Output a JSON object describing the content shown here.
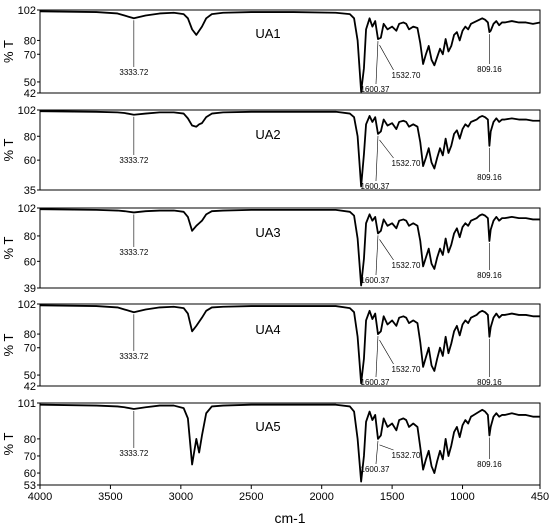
{
  "chart_data": {
    "type": "line",
    "xlabel": "cm-1",
    "xlim": [
      4000,
      450
    ],
    "xticks": [
      4000,
      3500,
      3000,
      2500,
      2000,
      1500,
      1000,
      450
    ],
    "ylabel": "% T",
    "grid": false,
    "panels": [
      {
        "title": "UA1",
        "ylim": [
          42,
          102
        ],
        "yticks": [
          102,
          80,
          70,
          50,
          42
        ],
        "annotations": [
          "3333.72",
          "1600.37",
          "1532.70",
          "809.16"
        ],
        "series": [
          {
            "x": [
              4000,
              3600,
              3450,
              3400,
              3333.72,
              3250,
              3150,
              3050,
              2980,
              2950,
              2920,
              2890,
              2870,
              2850,
              2820,
              2780,
              2700,
              2500,
              2200,
              1900,
              1800,
              1770,
              1745,
              1720,
              1700,
              1685,
              1660,
              1640,
              1620,
              1600.37,
              1580,
              1560,
              1532.7,
              1500,
              1470,
              1450,
              1420,
              1400,
              1380,
              1350,
              1320,
              1300,
              1280,
              1260,
              1240,
              1220,
              1200,
              1180,
              1160,
              1140,
              1120,
              1100,
              1080,
              1060,
              1040,
              1020,
              1000,
              980,
              960,
              940,
              920,
              900,
              880,
              860,
              840,
              820,
              809.16,
              800,
              780,
              760,
              740,
              720,
              700,
              650,
              600,
              550,
              500,
              450
            ],
            "y": [
              101,
              100.5,
              99.5,
              98,
              96,
              98,
              99.5,
              100,
              99,
              96,
              88,
              84,
              87,
              90,
              96,
              99,
              100,
              100.5,
              100.5,
              100,
              99,
              96,
              80,
              43,
              60,
              88,
              96,
              90,
              94,
              81,
              82,
              92,
              88,
              90,
              87,
              92,
              93,
              92,
              88,
              90,
              89,
              78,
              63,
              70,
              76,
              66,
              62,
              68,
              74,
              70,
              81,
              72,
              76,
              84,
              86,
              80,
              87,
              90,
              88,
              92,
              93,
              94,
              95,
              96,
              95,
              93,
              86,
              87,
              92,
              94,
              91,
              93,
              93,
              94,
              93,
              93,
              92,
              93
            ]
          }
        ]
      },
      {
        "title": "UA2",
        "ylim": [
          35,
          102
        ],
        "yticks": [
          102,
          80,
          60,
          35
        ],
        "annotations": [
          "3333.72",
          "1600.37",
          "1532.70",
          "809.16"
        ],
        "series": [
          {
            "x": [
              4000,
              3600,
              3450,
              3400,
              3333.72,
              3250,
              3150,
              3050,
              2980,
              2950,
              2920,
              2890,
              2870,
              2850,
              2820,
              2780,
              2700,
              2500,
              2200,
              1900,
              1800,
              1770,
              1745,
              1720,
              1700,
              1685,
              1660,
              1640,
              1620,
              1600.37,
              1580,
              1560,
              1532.7,
              1500,
              1470,
              1450,
              1420,
              1400,
              1380,
              1350,
              1320,
              1300,
              1280,
              1260,
              1240,
              1220,
              1200,
              1180,
              1160,
              1140,
              1120,
              1100,
              1080,
              1060,
              1040,
              1020,
              1000,
              980,
              960,
              940,
              920,
              900,
              880,
              860,
              840,
              820,
              809.16,
              800,
              780,
              760,
              740,
              720,
              700,
              650,
              600,
              550,
              500,
              450
            ],
            "y": [
              101,
              100.5,
              100,
              99.5,
              98,
              99,
              100,
              100,
              99,
              95,
              89,
              88,
              90,
              91,
              96,
              99,
              100,
              100.5,
              100.5,
              100.5,
              99,
              96,
              80,
              38,
              65,
              90,
              97,
              92,
              96,
              82,
              84,
              94,
              89,
              91,
              86,
              92,
              93,
              92,
              88,
              90,
              88,
              75,
              55,
              62,
              70,
              58,
              53,
              62,
              70,
              64,
              78,
              66,
              72,
              82,
              85,
              78,
              86,
              90,
              88,
              92,
              93,
              94,
              96,
              97,
              96,
              94,
              72,
              84,
              92,
              95,
              92,
              94,
              94,
              95,
              94,
              94,
              93,
              93
            ]
          }
        ]
      },
      {
        "title": "UA3",
        "ylim": [
          39,
          102
        ],
        "yticks": [
          102,
          80,
          60,
          39
        ],
        "annotations": [
          "3333.72",
          "1600.37",
          "1532.70",
          "809.16"
        ],
        "series": [
          {
            "x": [
              4000,
              3600,
              3450,
              3400,
              3333.72,
              3250,
              3150,
              3050,
              2980,
              2950,
              2920,
              2890,
              2870,
              2850,
              2820,
              2780,
              2700,
              2500,
              2200,
              1900,
              1800,
              1770,
              1745,
              1720,
              1700,
              1685,
              1660,
              1640,
              1620,
              1600.37,
              1580,
              1560,
              1532.7,
              1500,
              1470,
              1450,
              1420,
              1400,
              1380,
              1350,
              1320,
              1300,
              1280,
              1260,
              1240,
              1220,
              1200,
              1180,
              1160,
              1140,
              1120,
              1100,
              1080,
              1060,
              1040,
              1020,
              1000,
              980,
              960,
              940,
              920,
              900,
              880,
              860,
              840,
              820,
              809.16,
              800,
              780,
              760,
              740,
              720,
              700,
              650,
              600,
              550,
              500,
              450
            ],
            "y": [
              101,
              100.5,
              100,
              99.5,
              98.5,
              99.5,
              100,
              100,
              99,
              95,
              84,
              88,
              90,
              92,
              97,
              99.5,
              100,
              100.5,
              100.5,
              100.5,
              99,
              96,
              78,
              41,
              62,
              90,
              97,
              92,
              95,
              82,
              84,
              93,
              88,
              90,
              86,
              92,
              93,
              92,
              88,
              90,
              88,
              76,
              56,
              63,
              70,
              58,
              54,
              63,
              70,
              65,
              78,
              67,
              73,
              82,
              86,
              79,
              87,
              90,
              88,
              92,
              93,
              94,
              96,
              97,
              96,
              94,
              76,
              85,
              92,
              95,
              92,
              94,
              94,
              95,
              94,
              94,
              93,
              93
            ]
          }
        ]
      },
      {
        "title": "UA4",
        "ylim": [
          42,
          102
        ],
        "yticks": [
          102,
          80,
          70,
          50,
          42
        ],
        "annotations": [
          "3333.72",
          "1600.37",
          "1532.70",
          "809.16"
        ],
        "series": [
          {
            "x": [
              4000,
              3600,
              3450,
              3400,
              3333.72,
              3250,
              3150,
              3050,
              2980,
              2950,
              2920,
              2890,
              2870,
              2850,
              2820,
              2780,
              2700,
              2500,
              2200,
              1900,
              1800,
              1770,
              1745,
              1720,
              1700,
              1685,
              1660,
              1640,
              1620,
              1600.37,
              1580,
              1560,
              1532.7,
              1500,
              1470,
              1450,
              1420,
              1400,
              1380,
              1350,
              1320,
              1300,
              1280,
              1260,
              1240,
              1220,
              1200,
              1180,
              1160,
              1140,
              1120,
              1100,
              1080,
              1060,
              1040,
              1020,
              1000,
              980,
              960,
              940,
              920,
              900,
              880,
              860,
              840,
              820,
              809.16,
              800,
              780,
              760,
              740,
              720,
              700,
              650,
              600,
              550,
              500,
              450
            ],
            "y": [
              101,
              100.5,
              99.5,
              98,
              96,
              98,
              99.5,
              100,
              99,
              95,
              82,
              86,
              89,
              92,
              97,
              99.5,
              100,
              100.5,
              100.5,
              100.5,
              99,
              96,
              78,
              44,
              62,
              90,
              97,
              91,
              95,
              80,
              82,
              93,
              87,
              90,
              86,
              92,
              93,
              92,
              88,
              90,
              88,
              74,
              56,
              63,
              70,
              57,
              53,
              62,
              70,
              64,
              78,
              66,
              73,
              82,
              86,
              79,
              87,
              90,
              88,
              92,
              93,
              94,
              96,
              97,
              96,
              94,
              78,
              85,
              92,
              95,
              92,
              94,
              94,
              95,
              94,
              94,
              93,
              93
            ]
          }
        ]
      },
      {
        "title": "UA5",
        "ylim": [
          53,
          101
        ],
        "yticks": [
          101,
          80,
          70,
          60,
          53
        ],
        "annotations": [
          "3333.72",
          "1600.37",
          "1532.70",
          "809.16"
        ],
        "series": [
          {
            "x": [
              4000,
              3600,
              3450,
              3400,
              3333.72,
              3250,
              3150,
              3050,
              2980,
              2950,
              2920,
              2890,
              2870,
              2850,
              2820,
              2780,
              2700,
              2500,
              2200,
              1900,
              1800,
              1770,
              1745,
              1720,
              1700,
              1685,
              1660,
              1640,
              1620,
              1600.37,
              1580,
              1560,
              1532.7,
              1500,
              1470,
              1450,
              1420,
              1400,
              1380,
              1350,
              1320,
              1300,
              1280,
              1260,
              1240,
              1220,
              1200,
              1180,
              1160,
              1140,
              1120,
              1100,
              1080,
              1060,
              1040,
              1020,
              1000,
              980,
              960,
              940,
              920,
              900,
              880,
              860,
              840,
              820,
              809.16,
              800,
              780,
              760,
              740,
              720,
              700,
              650,
              600,
              550,
              500,
              450
            ],
            "y": [
              100,
              99.5,
              99,
              98.5,
              97.5,
              98.5,
              99.5,
              99.5,
              98,
              92,
              65,
              80,
              72,
              82,
              95,
              99,
              99.5,
              100,
              100,
              100,
              99,
              96,
              80,
              55,
              70,
              90,
              96,
              91,
              94,
              80,
              82,
              92,
              87,
              89,
              85,
              91,
              92,
              91,
              87,
              89,
              87,
              75,
              62,
              68,
              73,
              64,
              60,
              67,
              73,
              68,
              80,
              70,
              76,
              84,
              87,
              81,
              88,
              91,
              89,
              93,
              94,
              95,
              96,
              97,
              96,
              94,
              82,
              87,
              93,
              95,
              93,
              94,
              94,
              95,
              94,
              94,
              93,
              93
            ]
          }
        ]
      }
    ]
  }
}
